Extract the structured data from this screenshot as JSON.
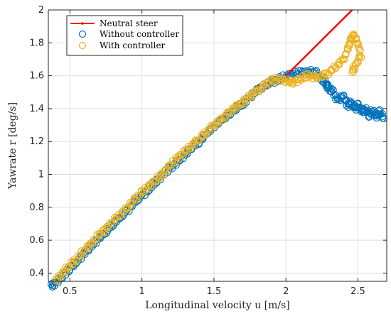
{
  "chart_data": {
    "type": "scatter",
    "title": "",
    "xlabel": "Longitudinal velocity u [m/s]",
    "ylabel": "Yawrate r [deg/s]",
    "xlim": [
      0.35,
      2.7
    ],
    "ylim": [
      0.35,
      2.0
    ],
    "xticks": [
      0.5,
      1,
      1.5,
      2,
      2.5
    ],
    "yticks": [
      0.4,
      0.6,
      0.8,
      1,
      1.2,
      1.4,
      1.6,
      1.8,
      2
    ],
    "grid": true,
    "legend_position": "top-left",
    "series": [
      {
        "name": "Neutral steer",
        "kind": "line",
        "color": "#ff0000",
        "x": [
          2.0,
          2.46
        ],
        "y": [
          1.6,
          2.0
        ]
      },
      {
        "name": "Without controller",
        "kind": "scatter",
        "color": "#0072bd",
        "x": [
          0.37,
          0.4,
          0.45,
          0.5,
          0.55,
          0.6,
          0.65,
          0.7,
          0.75,
          0.8,
          0.85,
          0.9,
          0.95,
          1.0,
          1.05,
          1.1,
          1.15,
          1.2,
          1.25,
          1.3,
          1.35,
          1.4,
          1.45,
          1.5,
          1.55,
          1.6,
          1.65,
          1.7,
          1.75,
          1.8,
          1.85,
          1.9,
          1.95,
          2.0,
          2.05,
          2.1,
          2.15,
          2.2,
          2.25,
          2.28,
          2.3,
          2.33,
          2.36,
          2.4,
          2.43,
          2.45,
          2.48,
          2.5,
          2.53,
          2.55,
          2.58,
          2.6,
          2.63,
          2.65,
          2.68
        ],
        "y": [
          0.32,
          0.34,
          0.38,
          0.43,
          0.47,
          0.52,
          0.56,
          0.61,
          0.65,
          0.7,
          0.74,
          0.78,
          0.83,
          0.87,
          0.91,
          0.96,
          1.0,
          1.04,
          1.08,
          1.12,
          1.17,
          1.2,
          1.25,
          1.29,
          1.33,
          1.36,
          1.4,
          1.43,
          1.47,
          1.51,
          1.54,
          1.56,
          1.58,
          1.6,
          1.61,
          1.62,
          1.62,
          1.63,
          1.58,
          1.55,
          1.52,
          1.5,
          1.45,
          1.48,
          1.42,
          1.44,
          1.4,
          1.42,
          1.38,
          1.4,
          1.36,
          1.39,
          1.35,
          1.38,
          1.34
        ]
      },
      {
        "name": "With controller",
        "kind": "scatter",
        "color": "#edb120",
        "x": [
          0.4,
          0.45,
          0.5,
          0.55,
          0.6,
          0.65,
          0.7,
          0.75,
          0.8,
          0.85,
          0.9,
          0.95,
          1.0,
          1.05,
          1.1,
          1.15,
          1.2,
          1.25,
          1.3,
          1.35,
          1.4,
          1.45,
          1.5,
          1.55,
          1.6,
          1.65,
          1.7,
          1.75,
          1.8,
          1.85,
          1.9,
          1.95,
          2.0,
          2.05,
          2.1,
          2.15,
          2.2,
          2.25,
          2.3,
          2.35,
          2.4,
          2.43,
          2.45,
          2.47,
          2.5,
          2.52,
          2.48,
          2.46
        ],
        "y": [
          0.35,
          0.4,
          0.45,
          0.49,
          0.54,
          0.58,
          0.63,
          0.67,
          0.72,
          0.76,
          0.8,
          0.85,
          0.89,
          0.93,
          0.97,
          1.01,
          1.06,
          1.1,
          1.14,
          1.18,
          1.22,
          1.26,
          1.3,
          1.33,
          1.37,
          1.41,
          1.44,
          1.48,
          1.51,
          1.54,
          1.57,
          1.58,
          1.57,
          1.56,
          1.58,
          1.6,
          1.59,
          1.6,
          1.62,
          1.66,
          1.7,
          1.76,
          1.82,
          1.85,
          1.8,
          1.72,
          1.66,
          1.62
        ]
      }
    ]
  }
}
